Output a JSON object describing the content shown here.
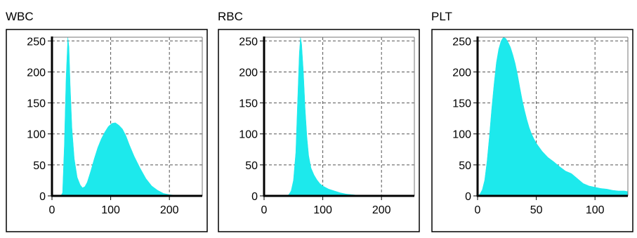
{
  "chart_data": [
    {
      "type": "area",
      "title": "WBC",
      "xlim": [
        0,
        256
      ],
      "ylim": [
        0,
        256
      ],
      "xticks": [
        0,
        100,
        200
      ],
      "yticks": [
        0,
        50,
        100,
        150,
        200,
        250
      ],
      "grid": true,
      "fill_color": "#1de9ec",
      "x": [
        0,
        15,
        18,
        21,
        24,
        27,
        29,
        31,
        34,
        38,
        43,
        48,
        52,
        56,
        60,
        66,
        72,
        78,
        84,
        90,
        96,
        102,
        108,
        114,
        120,
        126,
        132,
        140,
        150,
        160,
        170,
        180,
        190,
        200,
        210,
        220,
        256
      ],
      "y": [
        0,
        0,
        5,
        80,
        190,
        256,
        240,
        180,
        110,
        60,
        30,
        18,
        13,
        15,
        22,
        40,
        60,
        78,
        92,
        103,
        112,
        117,
        118,
        114,
        108,
        97,
        82,
        64,
        45,
        28,
        16,
        9,
        4,
        2,
        1,
        0,
        0
      ]
    },
    {
      "type": "area",
      "title": "RBC",
      "xlim": [
        0,
        256
      ],
      "ylim": [
        0,
        256
      ],
      "xticks": [
        0,
        100,
        200
      ],
      "yticks": [
        0,
        50,
        100,
        150,
        200,
        250
      ],
      "grid": true,
      "fill_color": "#1de9ec",
      "x": [
        0,
        38,
        42,
        46,
        50,
        54,
        57,
        60,
        62,
        64,
        67,
        70,
        73,
        76,
        80,
        85,
        90,
        95,
        100,
        110,
        120,
        130,
        140,
        150,
        160,
        170,
        180,
        256
      ],
      "y": [
        0,
        0,
        2,
        8,
        25,
        70,
        150,
        230,
        256,
        245,
        200,
        140,
        95,
        65,
        45,
        34,
        26,
        20,
        16,
        11,
        8,
        5,
        3,
        2,
        1,
        0,
        0,
        0
      ]
    },
    {
      "type": "area",
      "title": "PLT",
      "xlim": [
        0,
        128
      ],
      "ylim": [
        0,
        256
      ],
      "xticks": [
        0,
        50,
        100
      ],
      "yticks": [
        0,
        50,
        100,
        150,
        200,
        250
      ],
      "grid": true,
      "fill_color": "#1de9ec",
      "x": [
        0,
        2,
        4,
        6,
        8,
        10,
        12,
        14,
        16,
        18,
        20,
        22,
        24,
        26,
        28,
        30,
        32,
        34,
        36,
        38,
        40,
        42,
        44,
        46,
        48,
        50,
        55,
        60,
        65,
        70,
        75,
        80,
        85,
        90,
        95,
        100,
        105,
        110,
        115,
        120,
        125,
        128
      ],
      "y": [
        0,
        3,
        10,
        25,
        55,
        95,
        140,
        180,
        215,
        237,
        250,
        256,
        254,
        248,
        240,
        228,
        214,
        196,
        175,
        155,
        138,
        123,
        110,
        100,
        92,
        85,
        72,
        62,
        55,
        47,
        40,
        36,
        28,
        20,
        16,
        14,
        12,
        11,
        9,
        8,
        8,
        7
      ]
    }
  ]
}
